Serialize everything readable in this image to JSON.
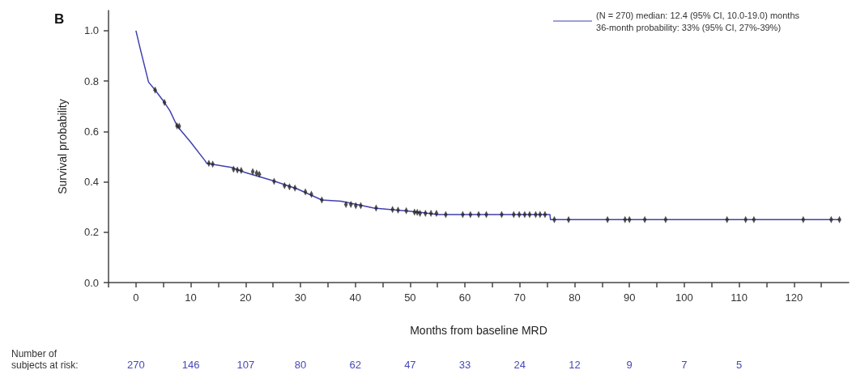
{
  "chart_data": {
    "type": "line",
    "title": "B",
    "xlabel": "Months from baseline MRD",
    "ylabel": "Survival probability",
    "xlim": [
      -5,
      130
    ],
    "xticks": [
      {
        "value": -5,
        "label": null
      },
      0,
      {
        "value": 5,
        "label": null
      },
      10,
      {
        "value": 15,
        "label": null
      },
      20,
      {
        "value": 25,
        "label": null
      },
      30,
      {
        "value": 35,
        "label": null
      },
      40,
      {
        "value": 45,
        "label": null
      },
      50,
      {
        "value": 55,
        "label": null
      },
      60,
      {
        "value": 65,
        "label": null
      },
      70,
      {
        "value": 75,
        "label": null
      },
      80,
      {
        "value": 85,
        "label": null
      },
      90,
      {
        "value": 95,
        "label": null
      },
      100,
      {
        "value": 105,
        "label": null
      },
      110,
      {
        "value": 115,
        "label": null
      },
      120,
      {
        "value": 125,
        "label": null
      }
    ],
    "ylim": [
      0,
      1.08
    ],
    "yticks": [
      {
        "value": 0,
        "label": "0.0"
      },
      {
        "value": 0.2,
        "label": "0.2"
      },
      {
        "value": 0.4,
        "label": "0.4"
      },
      {
        "value": 0.6,
        "label": "0.6"
      },
      {
        "value": 0.8,
        "label": "0.8"
      },
      {
        "value": 1,
        "label": "1.0"
      }
    ],
    "legend": "top right",
    "grid": false,
    "marker": "none",
    "line_style": "solid",
    "series": [
      {
        "name": "(N = 270) median: 12.4 (95% CI, 10.0-19.0) months\n36-month probability: 33% (95% CI, 27%-39%)",
        "color": "#4040b0",
        "x": [
          0,
          0.8,
          2.3,
          3.5,
          5.2,
          6.2,
          7.5,
          10.0,
          12.7,
          12.9,
          17.4,
          19.9,
          24.9,
          29.4,
          33.9,
          37.4,
          43.4,
          51.9,
          55,
          75.5,
          75.6,
          128.3
        ],
        "values": [
          1.0,
          0.927,
          0.796,
          0.764,
          0.715,
          0.682,
          0.622,
          0.557,
          0.481,
          0.473,
          0.457,
          0.437,
          0.405,
          0.372,
          0.328,
          0.323,
          0.296,
          0.279,
          0.27,
          0.27,
          0.25,
          0.25
        ]
      },
      {
        "type": "scatter",
        "marker": "diamond",
        "color": "#222222",
        "x": [
          3.5,
          5.2,
          7.5,
          7.9,
          13.3,
          14,
          17.8,
          18.5,
          19.2,
          21.3,
          22,
          22.5,
          25.2,
          27.1,
          28,
          29,
          30.9,
          32,
          33.9,
          38.3,
          39.2,
          40.1,
          41,
          43.8,
          46.8,
          47.8,
          49.3,
          50.8,
          51.3,
          51.8,
          52.8,
          53.8,
          54.8,
          56.5,
          59.6,
          61,
          62.5,
          63.9,
          66.7,
          68.9,
          69.9,
          70.9,
          71.8,
          72.9,
          73.7,
          74.6,
          76.3,
          78.9,
          86,
          89.2,
          90,
          92.8,
          96.6,
          107.8,
          111.2,
          112.7,
          121.7,
          126.8,
          128.3
        ],
        "values": [
          0.764,
          0.715,
          0.622,
          0.62,
          0.473,
          0.47,
          0.45,
          0.447,
          0.445,
          0.44,
          0.435,
          0.43,
          0.402,
          0.385,
          0.38,
          0.375,
          0.36,
          0.35,
          0.328,
          0.31,
          0.31,
          0.305,
          0.305,
          0.296,
          0.29,
          0.288,
          0.285,
          0.28,
          0.279,
          0.275,
          0.275,
          0.275,
          0.275,
          0.27,
          0.27,
          0.27,
          0.27,
          0.27,
          0.27,
          0.27,
          0.27,
          0.27,
          0.27,
          0.27,
          0.27,
          0.27,
          0.25,
          0.25,
          0.25,
          0.25,
          0.25,
          0.25,
          0.25,
          0.25,
          0.25,
          0.25,
          0.25,
          0.25,
          0.25
        ]
      }
    ],
    "annotations": [
      "Number of\nsubjects at risk:",
      "270",
      "146",
      "107",
      "80",
      "62",
      "47",
      "33",
      "24",
      "12",
      "9",
      "7",
      "5"
    ]
  }
}
